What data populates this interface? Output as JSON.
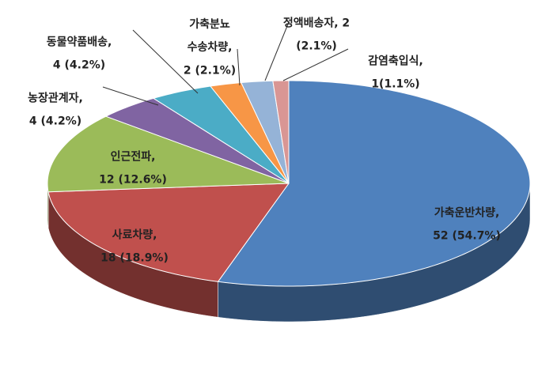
{
  "chart_data": {
    "type": "pie",
    "categories": [
      "가축운반차량,",
      "사료차량,",
      "인근전파,",
      "농장관계자,",
      "동물약품배송,",
      "가축분뇨\n수송차량,",
      "정액배송자, 2",
      "감염축입식,"
    ],
    "values": [
      52,
      18,
      12,
      4,
      4,
      2,
      2,
      1
    ],
    "value_labels": [
      "52 (54.7%)",
      "18 (18.9%)",
      "12 (12.6%)",
      "4 (4.2%)",
      "4 (4.2%)",
      "2 (2.1%)",
      "(2.1%)",
      "1(1.1%)"
    ],
    "colors": [
      "#4f81bd",
      "#c0504d",
      "#9bbb59",
      "#8064a2",
      "#4bacc6",
      "#f79646",
      "#95b3d7",
      "#d99694"
    ]
  }
}
